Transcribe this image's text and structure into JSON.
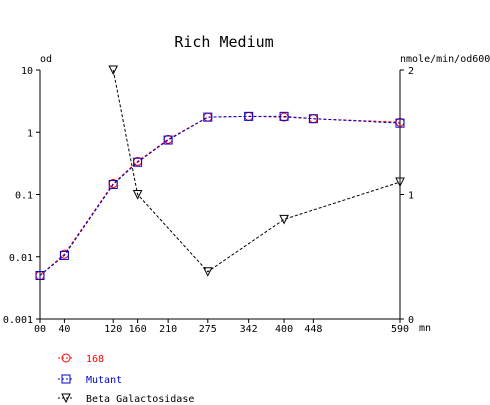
{
  "chart_data": {
    "type": "line",
    "title": "Rich Medium",
    "x_unit": "mn",
    "x_ticks": [
      0,
      40,
      120,
      160,
      210,
      275,
      342,
      400,
      448,
      590
    ],
    "x_tick_labels": [
      "00",
      "40",
      "120",
      "160",
      "210",
      "275",
      "342",
      "400",
      "448",
      "590"
    ],
    "xlim": [
      0,
      590
    ],
    "y_left": {
      "label": "od",
      "scale": "log",
      "lim": [
        0.001,
        10
      ],
      "ticks": [
        10,
        1,
        0.1,
        0.01,
        0.001
      ],
      "tick_labels": [
        "10",
        "1",
        "0.1",
        "0.01",
        "0.001"
      ]
    },
    "y_right": {
      "label": "nmole/min/od600",
      "scale": "linear",
      "lim": [
        0,
        2
      ],
      "ticks": [
        2,
        1,
        0
      ],
      "tick_labels": [
        "2",
        "1",
        "0"
      ]
    },
    "series": [
      {
        "name": "168",
        "axis": "left",
        "color": "#ff0000",
        "marker": "circle",
        "line": "dashed",
        "x": [
          0,
          40,
          120,
          160,
          210,
          275,
          342,
          400,
          448,
          590
        ],
        "values": [
          0.005,
          0.011,
          0.15,
          0.34,
          0.77,
          1.75,
          1.8,
          1.75,
          1.65,
          1.45
        ]
      },
      {
        "name": "Mutant",
        "axis": "left",
        "color": "#0000cc",
        "marker": "square",
        "line": "dashed",
        "x": [
          0,
          40,
          120,
          160,
          210,
          275,
          342,
          400,
          448,
          590
        ],
        "values": [
          0.005,
          0.0105,
          0.145,
          0.33,
          0.75,
          1.75,
          1.8,
          1.8,
          1.65,
          1.4
        ]
      },
      {
        "name": "Beta Galactosidase",
        "axis": "right",
        "color": "#000000",
        "marker": "triangle-down",
        "line": "dashed",
        "x": [
          120,
          160,
          275,
          400,
          590
        ],
        "values": [
          2.0,
          1.0,
          0.38,
          0.8,
          1.1
        ]
      }
    ],
    "legend_position": "bottom-left"
  }
}
